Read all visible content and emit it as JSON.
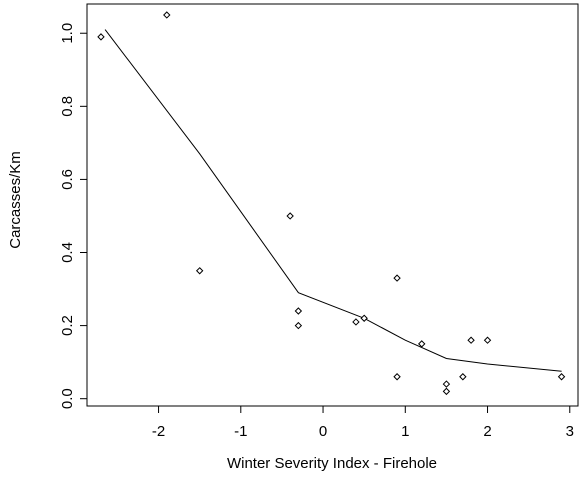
{
  "chart_data": {
    "type": "scatter",
    "xlabel": "Winter Severity Index - Firehole",
    "ylabel": "Carcasses/Km",
    "xlim": [
      -2.87,
      3.1
    ],
    "ylim": [
      -0.02,
      1.08
    ],
    "xticks": [
      -2,
      -1,
      0,
      1,
      2,
      3
    ],
    "yticks": [
      0.0,
      0.2,
      0.4,
      0.6,
      0.8,
      1.0
    ],
    "xtick_labels": [
      "-2",
      "-1",
      "0",
      "1",
      "2",
      "3"
    ],
    "ytick_labels": [
      "0.0",
      "0.2",
      "0.4",
      "0.6",
      "0.8",
      "1.0"
    ],
    "grid": false,
    "series": [
      {
        "type": "scatter",
        "marker": "open-diamond",
        "points": [
          {
            "x": -2.7,
            "y": 0.99
          },
          {
            "x": -1.9,
            "y": 1.05
          },
          {
            "x": -1.5,
            "y": 0.35
          },
          {
            "x": -0.4,
            "y": 0.5
          },
          {
            "x": -0.3,
            "y": 0.24
          },
          {
            "x": -0.3,
            "y": 0.2
          },
          {
            "x": 0.4,
            "y": 0.21
          },
          {
            "x": 0.5,
            "y": 0.22
          },
          {
            "x": 0.9,
            "y": 0.33
          },
          {
            "x": 0.9,
            "y": 0.06
          },
          {
            "x": 1.2,
            "y": 0.15
          },
          {
            "x": 1.5,
            "y": 0.04
          },
          {
            "x": 1.5,
            "y": 0.02
          },
          {
            "x": 1.7,
            "y": 0.06
          },
          {
            "x": 1.8,
            "y": 0.16
          },
          {
            "x": 2.0,
            "y": 0.16
          },
          {
            "x": 2.9,
            "y": 0.06
          }
        ]
      },
      {
        "type": "line",
        "style": "smooth-fit",
        "points": [
          {
            "x": -2.65,
            "y": 1.01
          },
          {
            "x": -1.5,
            "y": 0.67
          },
          {
            "x": -0.3,
            "y": 0.29
          },
          {
            "x": 0.5,
            "y": 0.22
          },
          {
            "x": 1.0,
            "y": 0.16
          },
          {
            "x": 1.5,
            "y": 0.11
          },
          {
            "x": 2.0,
            "y": 0.095
          },
          {
            "x": 2.9,
            "y": 0.075
          }
        ]
      }
    ]
  }
}
